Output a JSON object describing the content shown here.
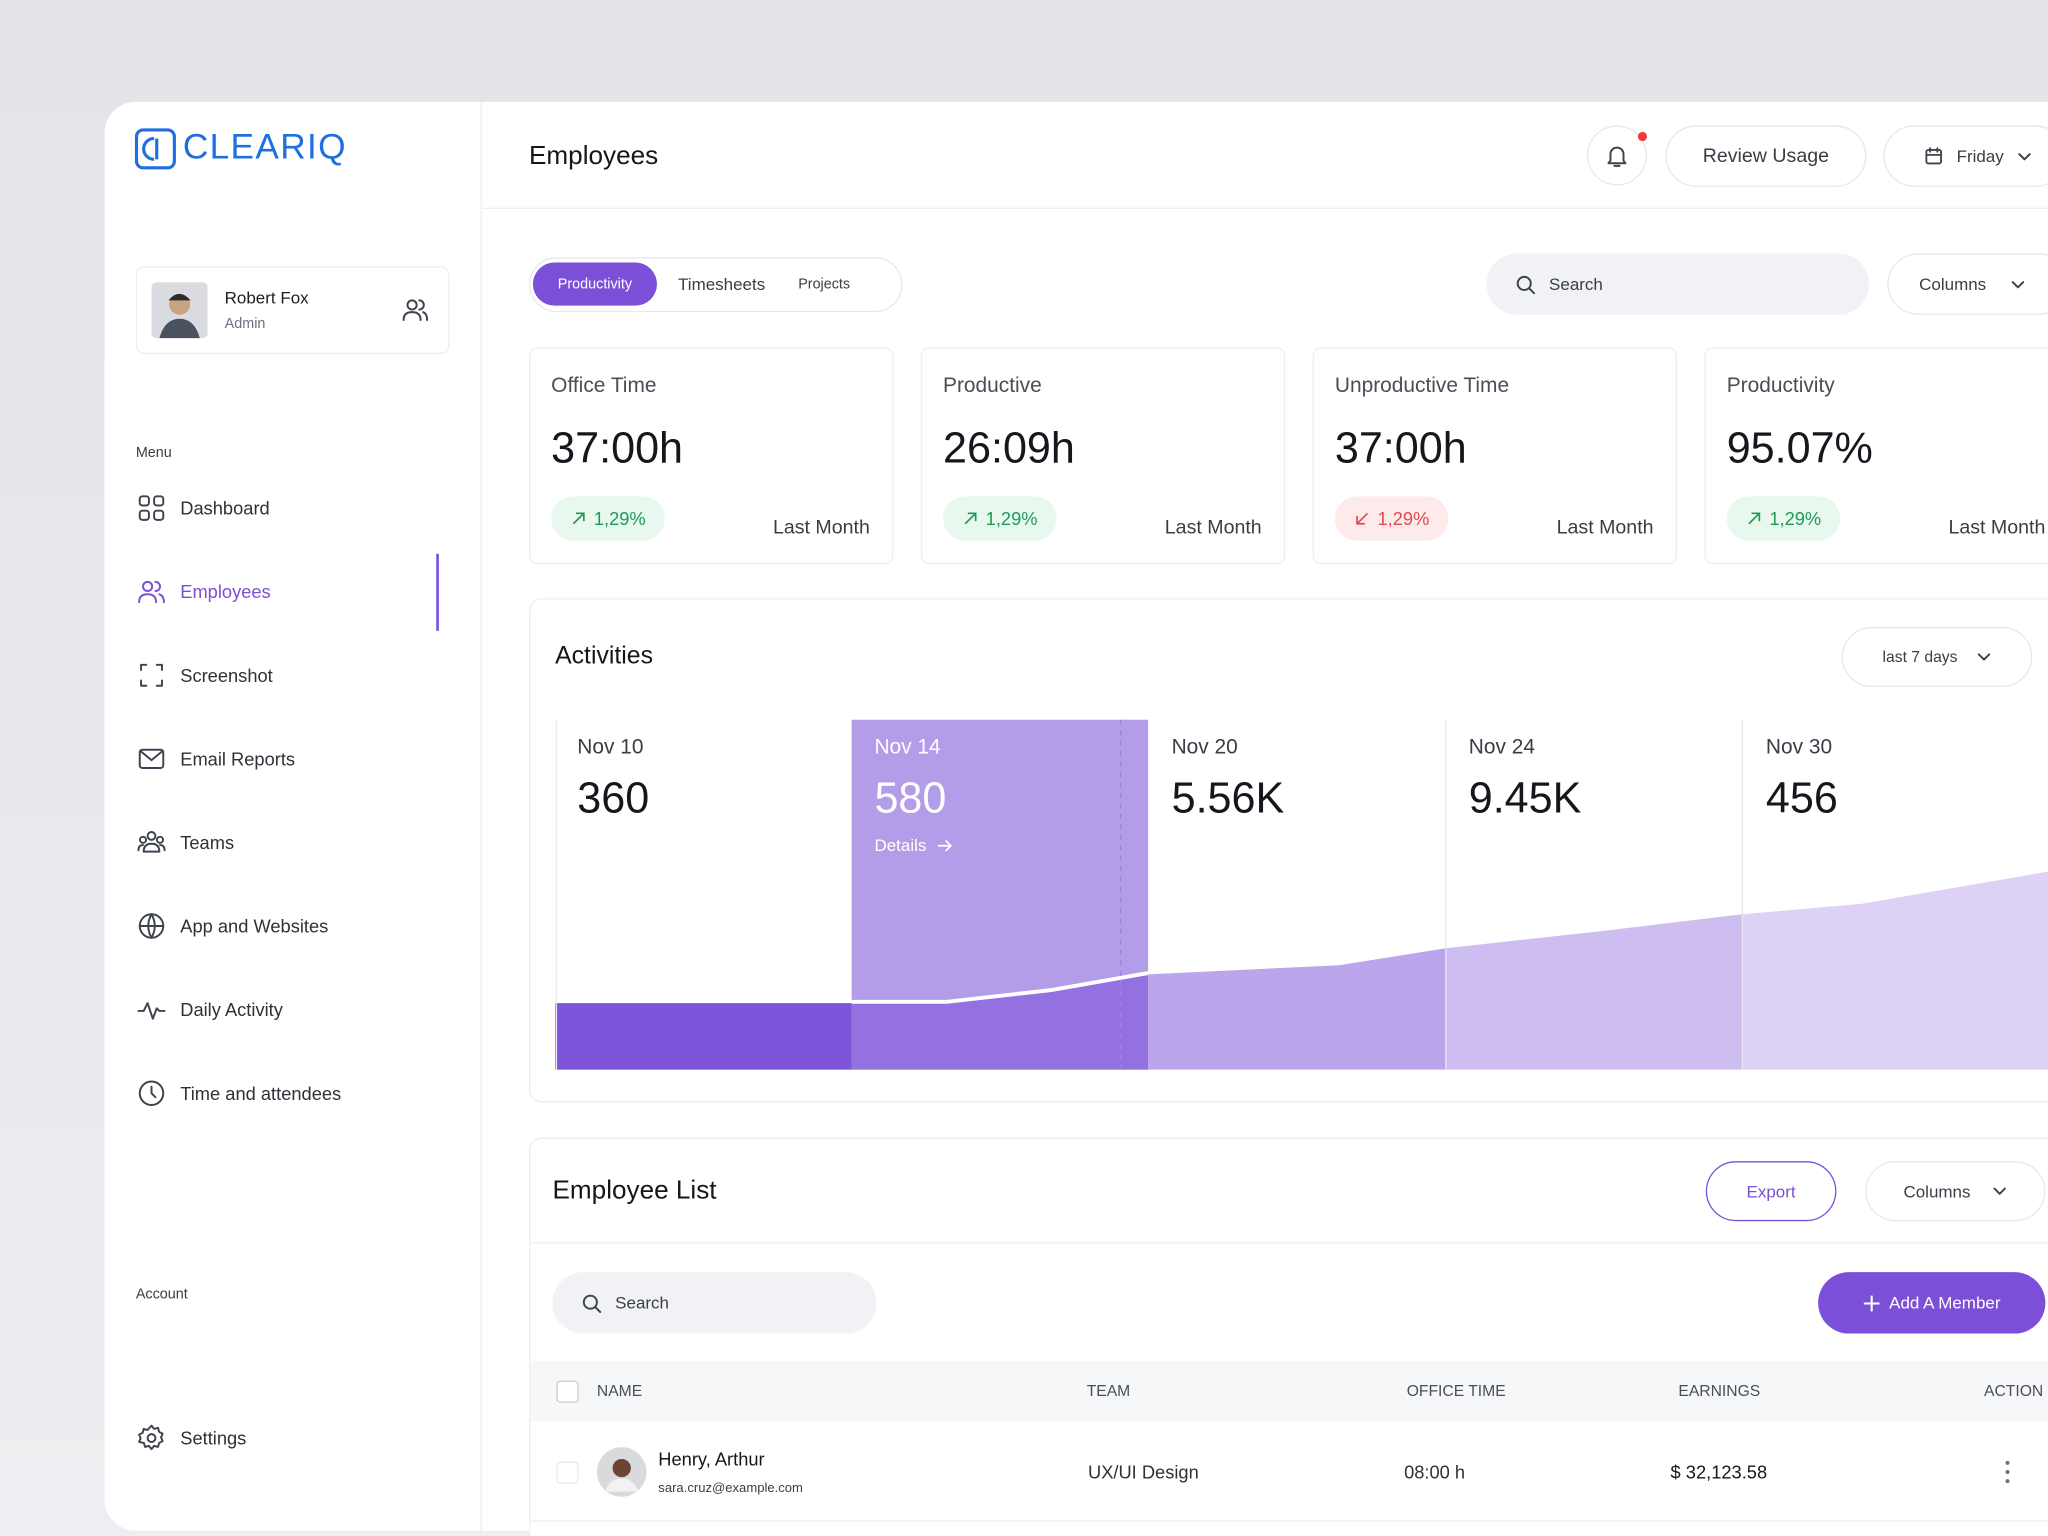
{
  "sidebar": {
    "brand": "CLEARIQ",
    "user": {
      "name": "Robert Fox",
      "role": "Admin"
    },
    "menu_label": "Menu",
    "menu": [
      "Dashboard",
      "Employees",
      "Screenshot",
      "Email Reports",
      "Teams",
      "App and Websites",
      "Daily Activity",
      "Time and attendees"
    ],
    "active": "Employees",
    "account_label": "Account",
    "account": [
      "Settings"
    ]
  },
  "header": {
    "title": "Employees",
    "review_button": "Review Usage",
    "day_select": "Friday"
  },
  "tabs": [
    "Productivity",
    "Timesheets",
    "Projects"
  ],
  "toolbar": {
    "search_placeholder": "Search",
    "columns_button": "Columns"
  },
  "stats": [
    {
      "label": "Office Time",
      "value": "37:00h",
      "change": "1,29%",
      "trend": "up",
      "period": "Last Month"
    },
    {
      "label": "Productive",
      "value": "26:09h",
      "change": "1,29%",
      "trend": "up",
      "period": "Last Month"
    },
    {
      "label": "Unproductive Time",
      "value": "37:00h",
      "change": "1,29%",
      "trend": "down",
      "period": "Last Month"
    },
    {
      "label": "Productivity",
      "value": "95.07%",
      "change": "1,29%",
      "trend": "up",
      "period": "Last Month"
    }
  ],
  "activities": {
    "title": "Activities",
    "range": "last 7 days",
    "columns": [
      {
        "date": "Nov 10",
        "value": "360"
      },
      {
        "date": "Nov 14",
        "value": "580",
        "link": "Details"
      },
      {
        "date": "Nov 20",
        "value": "5.56K"
      },
      {
        "date": "Nov 24",
        "value": "9.45K"
      },
      {
        "date": "Nov 30",
        "value": "456"
      }
    ]
  },
  "employee_list": {
    "title": "Employee List",
    "export_button": "Export",
    "columns_button": "Columns",
    "search_placeholder": "Search",
    "add_button": "Add A Member",
    "headers": [
      "NAME",
      "TEAM",
      "OFFICE TIME",
      "EARNINGS",
      "ACTION"
    ],
    "rows": [
      {
        "name": "Henry, Arthur",
        "email": "sara.cruz@example.com",
        "team": "UX/UI Design",
        "office_time": "08:00 h",
        "earnings": "$ 32,123.58"
      }
    ]
  }
}
